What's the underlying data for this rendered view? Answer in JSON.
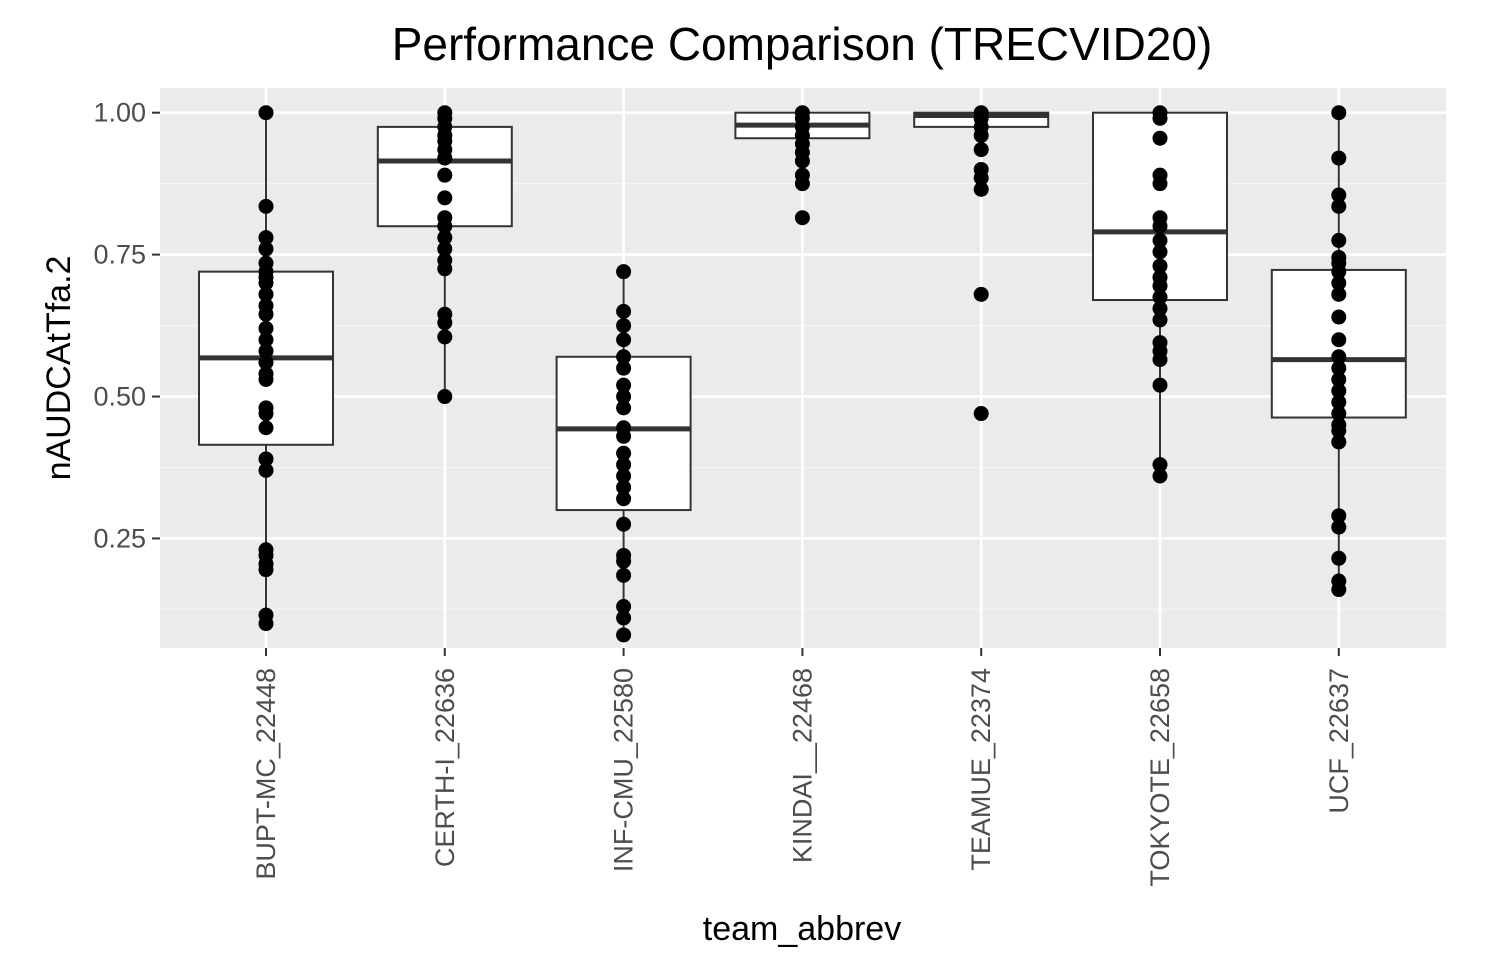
{
  "chart_data": {
    "type": "box",
    "title": "Performance Comparison (TRECVID20)",
    "xlabel": "team_abbrev",
    "ylabel": "nAUDCAtTfa.2",
    "ylim": [
      0.057,
      1.0435
    ],
    "yticks": [
      0.25,
      0.5,
      0.75,
      1.0
    ],
    "ytick_labels": [
      "0.25",
      "0.50",
      "0.75",
      "1.00"
    ],
    "yminor": [
      0.125,
      0.375,
      0.625,
      0.875
    ],
    "grid": true,
    "categories": [
      "BUPT-MC_22448",
      "CERTH-I_22636",
      "INF-CMU_22580",
      "KINDAI__22468",
      "TEAMUE_22374",
      "TOKYOTE_22658",
      "UCF_22637"
    ],
    "boxes": [
      {
        "q1": 0.415,
        "median": 0.568,
        "q3": 0.72,
        "whisker_low": 0.1,
        "whisker_high": 1.0
      },
      {
        "q1": 0.8,
        "median": 0.915,
        "q3": 0.975,
        "whisker_low": 0.5,
        "whisker_high": 1.0
      },
      {
        "q1": 0.3,
        "median": 0.443,
        "q3": 0.57,
        "whisker_low": 0.08,
        "whisker_high": 0.72
      },
      {
        "q1": 0.955,
        "median": 0.978,
        "q3": 1.0,
        "whisker_low": 0.88,
        "whisker_high": 1.0
      },
      {
        "q1": 0.975,
        "median": 0.995,
        "q3": 1.0,
        "whisker_low": 0.975,
        "whisker_high": 1.0
      },
      {
        "q1": 0.67,
        "median": 0.79,
        "q3": 1.0,
        "whisker_low": 0.36,
        "whisker_high": 1.0
      },
      {
        "q1": 0.463,
        "median": 0.565,
        "q3": 0.723,
        "whisker_low": 0.16,
        "whisker_high": 1.0
      }
    ],
    "points": [
      [
        1.0,
        0.835,
        0.78,
        0.76,
        0.735,
        0.72,
        0.71,
        0.7,
        0.68,
        0.66,
        0.645,
        0.62,
        0.6,
        0.58,
        0.56,
        0.54,
        0.53,
        0.48,
        0.47,
        0.445,
        0.39,
        0.37,
        0.23,
        0.22,
        0.205,
        0.195,
        0.115,
        0.1
      ],
      [
        1.0,
        0.99,
        0.975,
        0.96,
        0.95,
        0.935,
        0.92,
        0.89,
        0.85,
        0.815,
        0.8,
        0.78,
        0.76,
        0.74,
        0.725,
        0.645,
        0.63,
        0.605,
        0.5
      ],
      [
        0.72,
        0.65,
        0.625,
        0.6,
        0.57,
        0.55,
        0.52,
        0.5,
        0.48,
        0.445,
        0.43,
        0.4,
        0.38,
        0.36,
        0.34,
        0.32,
        0.275,
        0.22,
        0.21,
        0.185,
        0.13,
        0.11,
        0.08
      ],
      [
        1.0,
        0.99,
        0.975,
        0.96,
        0.945,
        0.93,
        0.915,
        0.89,
        0.875,
        0.815
      ],
      [
        1.0,
        0.99,
        0.975,
        0.96,
        0.935,
        0.9,
        0.885,
        0.865,
        0.68,
        0.47
      ],
      [
        1.0,
        0.99,
        0.955,
        0.89,
        0.875,
        0.815,
        0.8,
        0.775,
        0.755,
        0.73,
        0.71,
        0.695,
        0.675,
        0.655,
        0.635,
        0.595,
        0.58,
        0.565,
        0.52,
        0.38,
        0.36
      ],
      [
        1.0,
        0.92,
        0.855,
        0.835,
        0.775,
        0.745,
        0.735,
        0.72,
        0.7,
        0.68,
        0.64,
        0.6,
        0.57,
        0.55,
        0.53,
        0.51,
        0.49,
        0.47,
        0.45,
        0.44,
        0.42,
        0.29,
        0.27,
        0.215,
        0.175,
        0.16
      ]
    ]
  },
  "colors": {
    "panel": "#ebebeb",
    "grid_major": "#ffffff",
    "grid_minor": "#f5f5f5",
    "box_fill": "#ffffff",
    "box_line": "#333333",
    "point": "#000000",
    "tick": "#333333"
  }
}
